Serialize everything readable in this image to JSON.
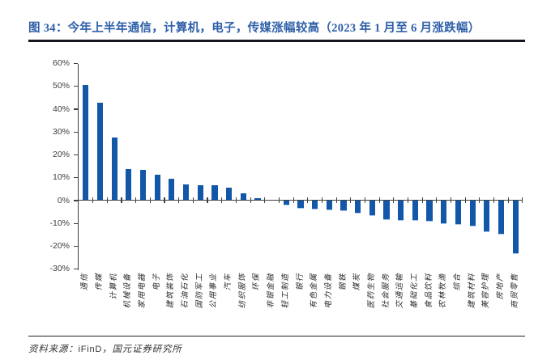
{
  "header": {
    "title": "图 34：今年上半年通信，计算机，电子，传媒涨幅较高（2023 年 1 月至 6 月涨跌幅）"
  },
  "footer": {
    "source_prefix": "资料来源：",
    "source_body_1": "iFinD",
    "source_body_2": "，国元证券研究所"
  },
  "chart_data": {
    "type": "bar",
    "title": "今年上半年通信，计算机，电子，传媒涨幅较高（2023年1月至6月涨跌幅）",
    "xlabel": "",
    "ylabel": "",
    "unit": "%",
    "ylim": [
      -30,
      60
    ],
    "grid": false,
    "legend": "none",
    "bar_color": "#1257A8",
    "axis_color": "#404040",
    "y_tick_labels": [
      "60%",
      "50%",
      "40%",
      "30%",
      "20%",
      "10%",
      "0%",
      "-10%",
      "-20%",
      "-30%"
    ],
    "categories": [
      "通信",
      "传媒",
      "计算机",
      "机械设备",
      "家用电器",
      "电子",
      "建筑装饰",
      "石油石化",
      "国防军工",
      "公用事业",
      "汽车",
      "纺织服饰",
      "环保",
      "非银金融",
      "轻工制造",
      "银行",
      "有色金属",
      "电力设备",
      "钢铁",
      "煤炭",
      "医药生物",
      "社会服务",
      "交通运输",
      "基础化工",
      "食品饮料",
      "农林牧渔",
      "综合",
      "建筑材料",
      "美容护理",
      "房地产",
      "商贸零售"
    ],
    "values": [
      50.5,
      42.7,
      27.6,
      13.7,
      13.4,
      11.2,
      9.6,
      7.2,
      6.8,
      6.6,
      5.5,
      3.1,
      1.2,
      0.5,
      -2.3,
      -3.5,
      -4.0,
      -4.4,
      -4.6,
      -5.5,
      -6.6,
      -8.4,
      -8.7,
      -8.9,
      -9.2,
      -10.3,
      -10.6,
      -11.3,
      -13.8,
      -14.7,
      -23.5
    ]
  }
}
